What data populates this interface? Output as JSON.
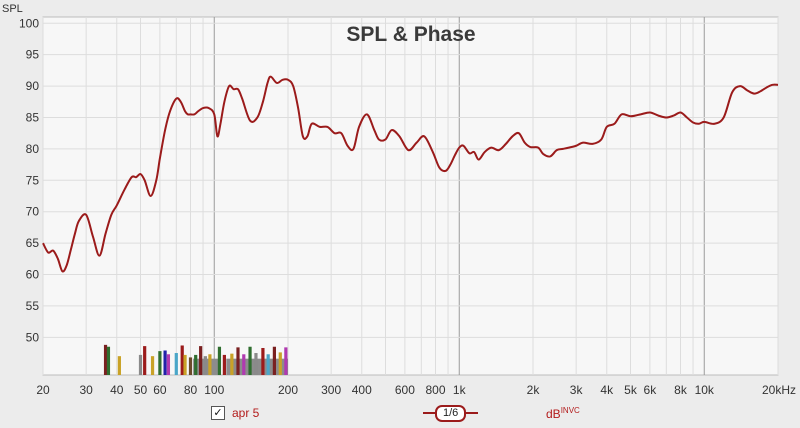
{
  "chart_data": {
    "type": "line",
    "title": "SPL & Phase",
    "ylabel": "SPL",
    "xlabel": "",
    "x_scale": "log",
    "xlim": [
      20,
      20000
    ],
    "ylim": [
      44,
      101
    ],
    "x_ticks": [
      20,
      30,
      40,
      50,
      60,
      80,
      100,
      200,
      300,
      400,
      600,
      800,
      1000,
      2000,
      3000,
      4000,
      5000,
      6000,
      8000,
      10000,
      20000
    ],
    "x_tick_labels": [
      "20",
      "30",
      "40",
      "50",
      "60",
      "80",
      "100",
      "200",
      "300",
      "400",
      "600",
      "800",
      "1k",
      "2k",
      "3k",
      "4k",
      "5k",
      "6k",
      "8k",
      "10k",
      "20kHz"
    ],
    "y_ticks": [
      50,
      55,
      60,
      65,
      70,
      75,
      80,
      85,
      90,
      95,
      100
    ],
    "grid": true,
    "colors": {
      "spl_line": "#9b1b1b",
      "plot_bg": "#f7f7f7",
      "grid": "#dddddd",
      "major_grid": "#9a9a9a"
    },
    "series": [
      {
        "x": [
          20,
          21,
          22,
          23,
          24,
          25,
          26,
          27,
          28,
          30,
          32,
          34,
          36,
          38,
          40,
          43,
          46,
          48,
          50,
          52,
          55,
          58,
          60,
          63,
          66,
          70,
          73,
          76,
          78,
          80,
          83,
          86,
          90,
          95,
          100,
          103,
          106,
          110,
          115,
          120,
          125,
          130,
          140,
          150,
          158,
          165,
          170,
          180,
          190,
          200,
          210,
          220,
          230,
          240,
          250,
          270,
          290,
          310,
          330,
          350,
          370,
          390,
          420,
          450,
          470,
          500,
          530,
          570,
          620,
          670,
          720,
          780,
          830,
          880,
          920,
          960,
          1000,
          1040,
          1100,
          1150,
          1200,
          1270,
          1350,
          1450,
          1550,
          1650,
          1750,
          1850,
          1950,
          2100,
          2200,
          2350,
          2500,
          2650,
          2800,
          3000,
          3200,
          3500,
          3800,
          4000,
          4300,
          4600,
          5000,
          5500,
          6000,
          6500,
          7000,
          7500,
          8000,
          8500,
          9000,
          9500,
          10000,
          11000,
          12000,
          13000,
          14000,
          15000,
          16000,
          17000,
          18000,
          19000,
          20000
        ],
        "values": [
          65,
          63.5,
          63.8,
          62.5,
          60.5,
          61.5,
          64,
          66.5,
          68.5,
          69.5,
          66,
          63,
          66.5,
          69.5,
          71,
          73.5,
          75.5,
          75.5,
          76,
          75,
          72.5,
          75,
          78.5,
          83,
          86,
          88,
          87.5,
          86,
          85.5,
          85.5,
          85.5,
          86,
          86.5,
          86.5,
          85.5,
          82,
          84,
          87.5,
          90,
          89.5,
          89.5,
          88,
          84.5,
          85,
          87.5,
          90.5,
          91.5,
          90.5,
          91,
          91,
          90,
          86.5,
          82,
          82,
          84,
          83.5,
          83.5,
          82.5,
          82.5,
          80.5,
          80,
          83.5,
          85.5,
          83,
          81.5,
          81.5,
          83,
          82,
          79.8,
          81,
          82,
          79.5,
          77,
          76.5,
          77.5,
          79,
          80.2,
          80.5,
          79.3,
          79.5,
          78.3,
          79.5,
          80.2,
          79.8,
          80.8,
          82,
          82.5,
          81,
          80.3,
          80.2,
          79.2,
          78.8,
          79.8,
          80,
          80.2,
          80.5,
          81,
          80.8,
          81.5,
          83.5,
          84,
          85.5,
          85.2,
          85.5,
          85.8,
          85.3,
          85,
          85.3,
          85.8,
          85,
          84.2,
          84,
          84.3,
          84,
          85,
          89,
          90,
          89.3,
          88.8,
          89.2,
          89.8,
          90.2,
          90.2
        ]
      }
    ],
    "overlay_bars": {
      "baseline": 44,
      "bars": [
        {
          "x": 36,
          "top": 48.8,
          "color": "#7a2020"
        },
        {
          "x": 37,
          "top": 48.5,
          "color": "#2f6e2f"
        },
        {
          "x": 41,
          "top": 47,
          "color": "#c9a227"
        },
        {
          "x": 50,
          "top": 47.2,
          "color": "#8a8a8a"
        },
        {
          "x": 52,
          "top": 48.6,
          "color": "#9b1b1b"
        },
        {
          "x": 56,
          "top": 47,
          "color": "#c9a227"
        },
        {
          "x": 60,
          "top": 47.8,
          "color": "#2f6e2f"
        },
        {
          "x": 63,
          "top": 47.9,
          "color": "#2222aa"
        },
        {
          "x": 65,
          "top": 47.3,
          "color": "#b03ab0"
        },
        {
          "x": 70,
          "top": 47.5,
          "color": "#4aa6c8"
        },
        {
          "x": 74,
          "top": 48.7,
          "color": "#9b1b1b"
        },
        {
          "x": 76,
          "top": 47.2,
          "color": "#c9a227"
        },
        {
          "x": 80,
          "top": 46.8,
          "color": "#6a4a2a"
        },
        {
          "x": 84,
          "top": 47.2,
          "color": "#2f6e2f"
        },
        {
          "x": 88,
          "top": 48.6,
          "color": "#7a2020"
        },
        {
          "x": 92,
          "top": 47,
          "color": "#8a8a8a"
        },
        {
          "x": 96,
          "top": 47.3,
          "color": "#c9a227"
        },
        {
          "x": 105,
          "top": 48.5,
          "color": "#2f6e2f"
        },
        {
          "x": 110,
          "top": 47.2,
          "color": "#9b1b1b"
        },
        {
          "x": 118,
          "top": 47.4,
          "color": "#c9a227"
        },
        {
          "x": 125,
          "top": 48.4,
          "color": "#7a2020"
        },
        {
          "x": 132,
          "top": 47.3,
          "color": "#b03ab0"
        },
        {
          "x": 140,
          "top": 48.5,
          "color": "#2f6e2f"
        },
        {
          "x": 148,
          "top": 47.5,
          "color": "#8a8a8a"
        },
        {
          "x": 158,
          "top": 48.3,
          "color": "#9b1b1b"
        },
        {
          "x": 166,
          "top": 47.3,
          "color": "#4aa6c8"
        },
        {
          "x": 176,
          "top": 48.5,
          "color": "#7a2020"
        },
        {
          "x": 186,
          "top": 47.6,
          "color": "#c9a227"
        },
        {
          "x": 196,
          "top": 48.4,
          "color": "#b03ab0"
        }
      ],
      "grey_blocks": [
        [
          82,
          104
        ],
        [
          112,
          200
        ]
      ]
    }
  },
  "legend": {
    "checkbox_checked": true,
    "checkbox_label": "apr 5",
    "smoothing_label": "1/6",
    "unit_main": "dB",
    "unit_sup": "INVC"
  }
}
